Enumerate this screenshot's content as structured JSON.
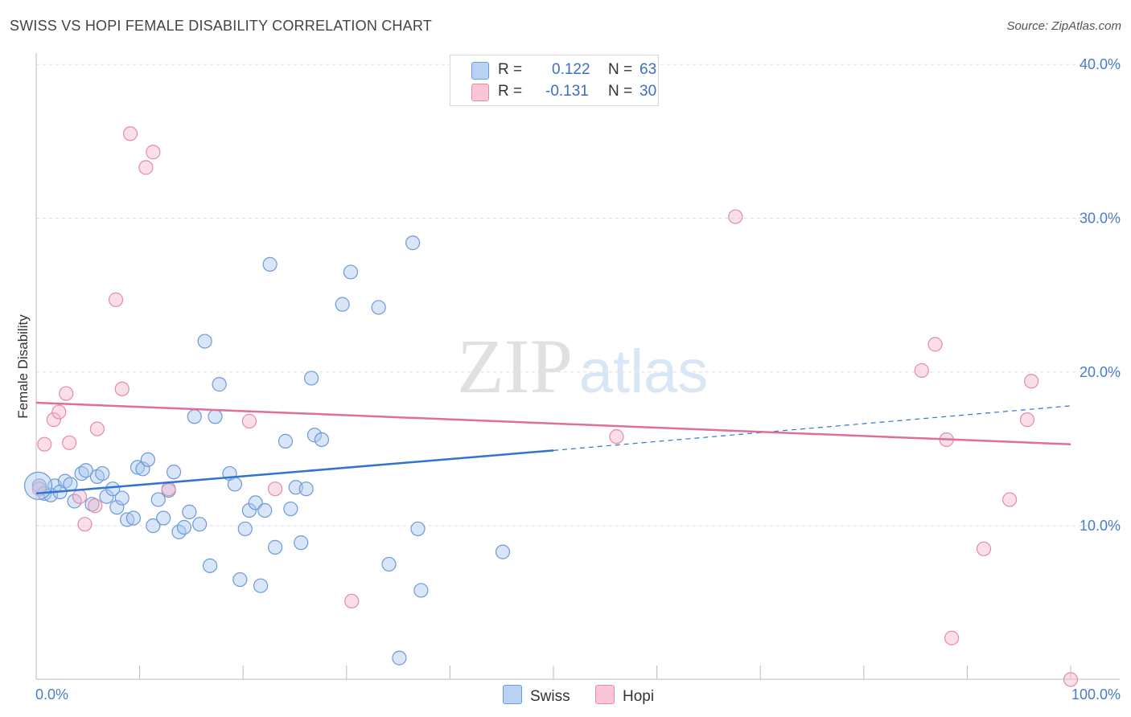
{
  "title": "SWISS VS HOPI FEMALE DISABILITY CORRELATION CHART",
  "source": "Source: ZipAtlas.com",
  "watermark": {
    "zip": "ZIP",
    "atlas": "atlas"
  },
  "legend": {
    "rows": [
      {
        "r_label": "R = ",
        "r_value": "0.122",
        "n_label": "N = ",
        "n_value": "63"
      },
      {
        "r_label": "R = ",
        "r_value": "-0.131",
        "n_label": "N = ",
        "n_value": "30"
      }
    ]
  },
  "bottom_legend": {
    "swiss": "Swiss",
    "hopi": "Hopi"
  },
  "colors": {
    "swiss_fill": "#a9c8f0",
    "swiss_stroke": "#6b9ad8",
    "swiss_line": "#2f74d0",
    "hopi_fill": "#f7b8cb",
    "hopi_stroke": "#e58aa8",
    "hopi_line": "#e06e98",
    "tick_text": "#4a7cc8",
    "grid": "#dddddd"
  },
  "chart_data": {
    "type": "scatter",
    "title": "SWISS VS HOPI FEMALE DISABILITY CORRELATION CHART",
    "xlabel": "",
    "ylabel": "Female Disability",
    "xlim": [
      0,
      100
    ],
    "ylim": [
      0,
      42
    ],
    "x_tick_labels": [
      "0.0%",
      "100.0%"
    ],
    "y_ticks": [
      10,
      20,
      30,
      40
    ],
    "y_tick_labels": [
      "10.0%",
      "20.0%",
      "30.0%",
      "40.0%"
    ],
    "grid": true,
    "legend_position": "top-center",
    "series": [
      {
        "name": "Swiss",
        "r": 0.122,
        "n": 63,
        "trend": {
          "x0": 0,
          "y0": 12.1,
          "x1": 50,
          "y1": 14.9,
          "dashed_to_x": 100,
          "dashed_to_y": 17.8
        },
        "points": [
          [
            0.3,
            12.6
          ],
          [
            0.8,
            12.1
          ],
          [
            1.4,
            12.0
          ],
          [
            1.8,
            12.6
          ],
          [
            2.3,
            12.2
          ],
          [
            2.8,
            12.9
          ],
          [
            3.3,
            12.7
          ],
          [
            3.7,
            11.6
          ],
          [
            4.4,
            13.4
          ],
          [
            4.8,
            13.6
          ],
          [
            5.4,
            11.4
          ],
          [
            5.9,
            13.2
          ],
          [
            6.4,
            13.4
          ],
          [
            6.8,
            11.9
          ],
          [
            7.4,
            12.4
          ],
          [
            7.8,
            11.2
          ],
          [
            8.3,
            11.8
          ],
          [
            8.8,
            10.4
          ],
          [
            9.4,
            10.5
          ],
          [
            9.8,
            13.8
          ],
          [
            10.3,
            13.7
          ],
          [
            10.8,
            14.3
          ],
          [
            11.3,
            10.0
          ],
          [
            11.8,
            11.7
          ],
          [
            12.3,
            10.5
          ],
          [
            12.8,
            12.3
          ],
          [
            13.3,
            13.5
          ],
          [
            13.8,
            9.6
          ],
          [
            14.3,
            9.9
          ],
          [
            14.8,
            10.9
          ],
          [
            15.8,
            10.1
          ],
          [
            16.3,
            22.0
          ],
          [
            16.8,
            7.4
          ],
          [
            15.3,
            17.1
          ],
          [
            17.3,
            17.1
          ],
          [
            17.7,
            19.2
          ],
          [
            18.7,
            13.4
          ],
          [
            19.2,
            12.7
          ],
          [
            19.7,
            6.5
          ],
          [
            20.2,
            9.8
          ],
          [
            20.6,
            11.0
          ],
          [
            21.2,
            11.5
          ],
          [
            21.7,
            6.1
          ],
          [
            22.1,
            11.0
          ],
          [
            22.6,
            27.0
          ],
          [
            23.1,
            8.6
          ],
          [
            24.1,
            15.5
          ],
          [
            24.6,
            11.1
          ],
          [
            25.1,
            12.5
          ],
          [
            25.6,
            8.9
          ],
          [
            26.1,
            12.4
          ],
          [
            26.6,
            19.6
          ],
          [
            26.9,
            15.9
          ],
          [
            27.6,
            15.6
          ],
          [
            29.6,
            24.4
          ],
          [
            30.4,
            26.5
          ],
          [
            33.1,
            24.2
          ],
          [
            34.1,
            7.5
          ],
          [
            35.1,
            1.4
          ],
          [
            36.4,
            28.4
          ],
          [
            36.9,
            9.8
          ],
          [
            37.2,
            5.8
          ],
          [
            45.1,
            8.3
          ]
        ]
      },
      {
        "name": "Hopi",
        "r": -0.131,
        "n": 30,
        "trend": {
          "x0": 0,
          "y0": 18.0,
          "x1": 100,
          "y1": 15.3
        },
        "points": [
          [
            0.3,
            12.4
          ],
          [
            0.8,
            15.3
          ],
          [
            1.7,
            16.9
          ],
          [
            2.2,
            17.4
          ],
          [
            2.9,
            18.6
          ],
          [
            3.2,
            15.4
          ],
          [
            4.2,
            11.9
          ],
          [
            4.7,
            10.1
          ],
          [
            5.7,
            11.3
          ],
          [
            5.9,
            16.3
          ],
          [
            7.7,
            24.7
          ],
          [
            8.3,
            18.9
          ],
          [
            9.1,
            35.5
          ],
          [
            10.6,
            33.3
          ],
          [
            11.3,
            34.3
          ],
          [
            12.8,
            12.4
          ],
          [
            20.6,
            16.8
          ],
          [
            23.1,
            12.4
          ],
          [
            30.5,
            5.1
          ],
          [
            56.1,
            15.8
          ],
          [
            67.6,
            30.1
          ],
          [
            85.6,
            20.1
          ],
          [
            86.9,
            21.8
          ],
          [
            88.0,
            15.6
          ],
          [
            88.5,
            2.7
          ],
          [
            91.6,
            8.5
          ],
          [
            94.1,
            11.7
          ],
          [
            95.8,
            16.9
          ],
          [
            96.2,
            19.4
          ],
          [
            100.0,
            0.0
          ]
        ]
      }
    ]
  }
}
